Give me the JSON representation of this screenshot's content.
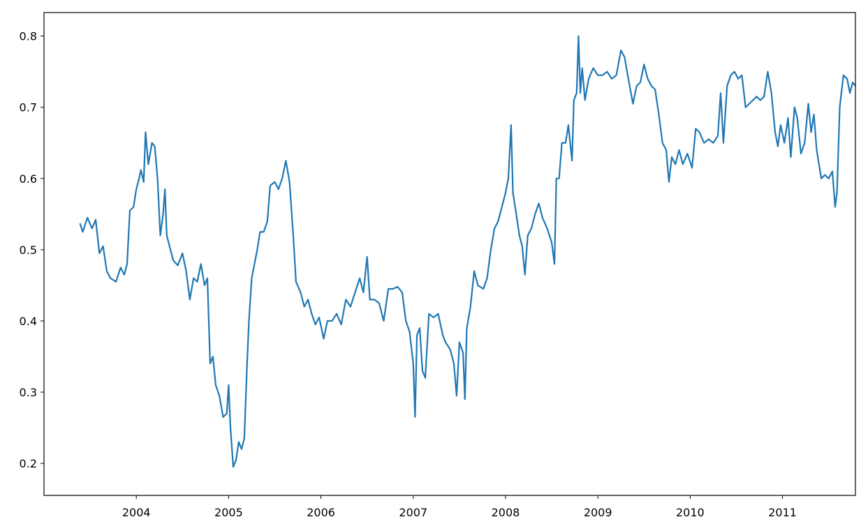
{
  "chart_data": {
    "type": "line",
    "color": "#1f77b4",
    "xlim": [
      2003.0,
      2011.79
    ],
    "ylim": [
      0.155,
      0.833
    ],
    "xticks": [
      2004,
      2005,
      2006,
      2007,
      2008,
      2009,
      2010,
      2011
    ],
    "yticks": [
      0.2,
      0.3,
      0.4,
      0.5,
      0.6,
      0.7,
      0.8
    ],
    "x": [
      2003.39,
      2003.42,
      2003.47,
      2003.52,
      2003.56,
      2003.6,
      2003.64,
      2003.68,
      2003.72,
      2003.78,
      2003.83,
      2003.87,
      2003.9,
      2003.93,
      2003.97,
      2004.0,
      2004.03,
      2004.05,
      2004.08,
      2004.1,
      2004.13,
      2004.17,
      2004.2,
      2004.23,
      2004.26,
      2004.29,
      2004.31,
      2004.33,
      2004.37,
      2004.4,
      2004.45,
      2004.5,
      2004.54,
      2004.58,
      2004.62,
      2004.66,
      2004.7,
      2004.74,
      2004.77,
      2004.8,
      2004.83,
      2004.86,
      2004.9,
      2004.94,
      2004.98,
      2005.0,
      2005.02,
      2005.05,
      2005.08,
      2005.11,
      2005.14,
      2005.17,
      2005.2,
      2005.22,
      2005.25,
      2005.28,
      2005.31,
      2005.34,
      2005.38,
      2005.42,
      2005.45,
      2005.5,
      2005.54,
      2005.58,
      2005.62,
      2005.66,
      2005.7,
      2005.73,
      2005.78,
      2005.82,
      2005.86,
      2005.9,
      2005.94,
      2005.98,
      2006.03,
      2006.07,
      2006.12,
      2006.17,
      2006.22,
      2006.27,
      2006.32,
      2006.37,
      2006.42,
      2006.46,
      2006.5,
      2006.53,
      2006.58,
      2006.63,
      2006.68,
      2006.73,
      2006.78,
      2006.83,
      2006.88,
      2006.92,
      2006.96,
      2007.0,
      2007.02,
      2007.04,
      2007.07,
      2007.1,
      2007.13,
      2007.17,
      2007.22,
      2007.27,
      2007.32,
      2007.35,
      2007.4,
      2007.44,
      2007.47,
      2007.5,
      2007.54,
      2007.56,
      2007.58,
      2007.62,
      2007.66,
      2007.7,
      2007.76,
      2007.8,
      2007.84,
      2007.88,
      2007.92,
      2007.96,
      2008.0,
      2008.03,
      2008.06,
      2008.08,
      2008.11,
      2008.15,
      2008.18,
      2008.21,
      2008.24,
      2008.28,
      2008.32,
      2008.36,
      2008.4,
      2008.45,
      2008.5,
      2008.53,
      2008.55,
      2008.58,
      2008.61,
      2008.65,
      2008.68,
      2008.72,
      2008.74,
      2008.77,
      2008.79,
      2008.81,
      2008.83,
      2008.86,
      2008.9,
      2008.95,
      2009.0,
      2009.05,
      2009.1,
      2009.15,
      2009.2,
      2009.25,
      2009.29,
      2009.33,
      2009.38,
      2009.42,
      2009.46,
      2009.5,
      2009.54,
      2009.58,
      2009.62,
      2009.66,
      2009.7,
      2009.74,
      2009.77,
      2009.8,
      2009.84,
      2009.88,
      2009.92,
      2009.97,
      2010.02,
      2010.06,
      2010.1,
      2010.15,
      2010.2,
      2010.25,
      2010.3,
      2010.33,
      2010.36,
      2010.4,
      2010.44,
      2010.48,
      2010.52,
      2010.56,
      2010.6,
      2010.64,
      2010.68,
      2010.72,
      2010.76,
      2010.8,
      2010.84,
      2010.88,
      2010.92,
      2010.95,
      2010.98,
      2011.02,
      2011.06,
      2011.09,
      2011.13,
      2011.16,
      2011.2,
      2011.24,
      2011.28,
      2011.31,
      2011.34,
      2011.37,
      2011.42,
      2011.46,
      2011.5,
      2011.54,
      2011.57,
      2011.59,
      2011.62,
      2011.66,
      2011.7,
      2011.73,
      2011.76,
      2011.79
    ],
    "values": [
      0.537,
      0.525,
      0.545,
      0.53,
      0.542,
      0.495,
      0.505,
      0.47,
      0.46,
      0.455,
      0.475,
      0.465,
      0.48,
      0.555,
      0.56,
      0.585,
      0.6,
      0.612,
      0.595,
      0.665,
      0.62,
      0.65,
      0.645,
      0.6,
      0.52,
      0.55,
      0.585,
      0.52,
      0.5,
      0.485,
      0.478,
      0.495,
      0.47,
      0.43,
      0.46,
      0.455,
      0.48,
      0.45,
      0.46,
      0.34,
      0.35,
      0.31,
      0.295,
      0.265,
      0.27,
      0.31,
      0.25,
      0.195,
      0.205,
      0.23,
      0.22,
      0.235,
      0.34,
      0.4,
      0.46,
      0.48,
      0.5,
      0.525,
      0.525,
      0.54,
      0.59,
      0.595,
      0.585,
      0.6,
      0.625,
      0.595,
      0.52,
      0.455,
      0.44,
      0.42,
      0.43,
      0.41,
      0.395,
      0.405,
      0.375,
      0.4,
      0.4,
      0.41,
      0.395,
      0.43,
      0.42,
      0.44,
      0.46,
      0.44,
      0.49,
      0.43,
      0.43,
      0.425,
      0.4,
      0.445,
      0.445,
      0.448,
      0.44,
      0.4,
      0.385,
      0.34,
      0.265,
      0.38,
      0.39,
      0.33,
      0.32,
      0.41,
      0.405,
      0.41,
      0.38,
      0.37,
      0.36,
      0.34,
      0.295,
      0.37,
      0.355,
      0.29,
      0.39,
      0.42,
      0.47,
      0.45,
      0.445,
      0.46,
      0.5,
      0.53,
      0.54,
      0.56,
      0.58,
      0.6,
      0.675,
      0.58,
      0.555,
      0.52,
      0.505,
      0.465,
      0.52,
      0.53,
      0.55,
      0.565,
      0.545,
      0.53,
      0.51,
      0.48,
      0.6,
      0.6,
      0.65,
      0.65,
      0.675,
      0.625,
      0.71,
      0.72,
      0.8,
      0.72,
      0.755,
      0.71,
      0.74,
      0.755,
      0.745,
      0.745,
      0.75,
      0.74,
      0.745,
      0.78,
      0.77,
      0.74,
      0.705,
      0.73,
      0.735,
      0.76,
      0.74,
      0.73,
      0.725,
      0.69,
      0.65,
      0.64,
      0.595,
      0.63,
      0.62,
      0.64,
      0.62,
      0.635,
      0.615,
      0.67,
      0.665,
      0.65,
      0.655,
      0.65,
      0.66,
      0.72,
      0.65,
      0.73,
      0.745,
      0.75,
      0.74,
      0.745,
      0.7,
      0.705,
      0.71,
      0.715,
      0.71,
      0.715,
      0.75,
      0.72,
      0.665,
      0.645,
      0.675,
      0.65,
      0.685,
      0.63,
      0.7,
      0.685,
      0.635,
      0.65,
      0.705,
      0.665,
      0.69,
      0.64,
      0.6,
      0.605,
      0.6,
      0.61,
      0.56,
      0.58,
      0.7,
      0.745,
      0.74,
      0.72,
      0.735,
      0.73
    ]
  }
}
